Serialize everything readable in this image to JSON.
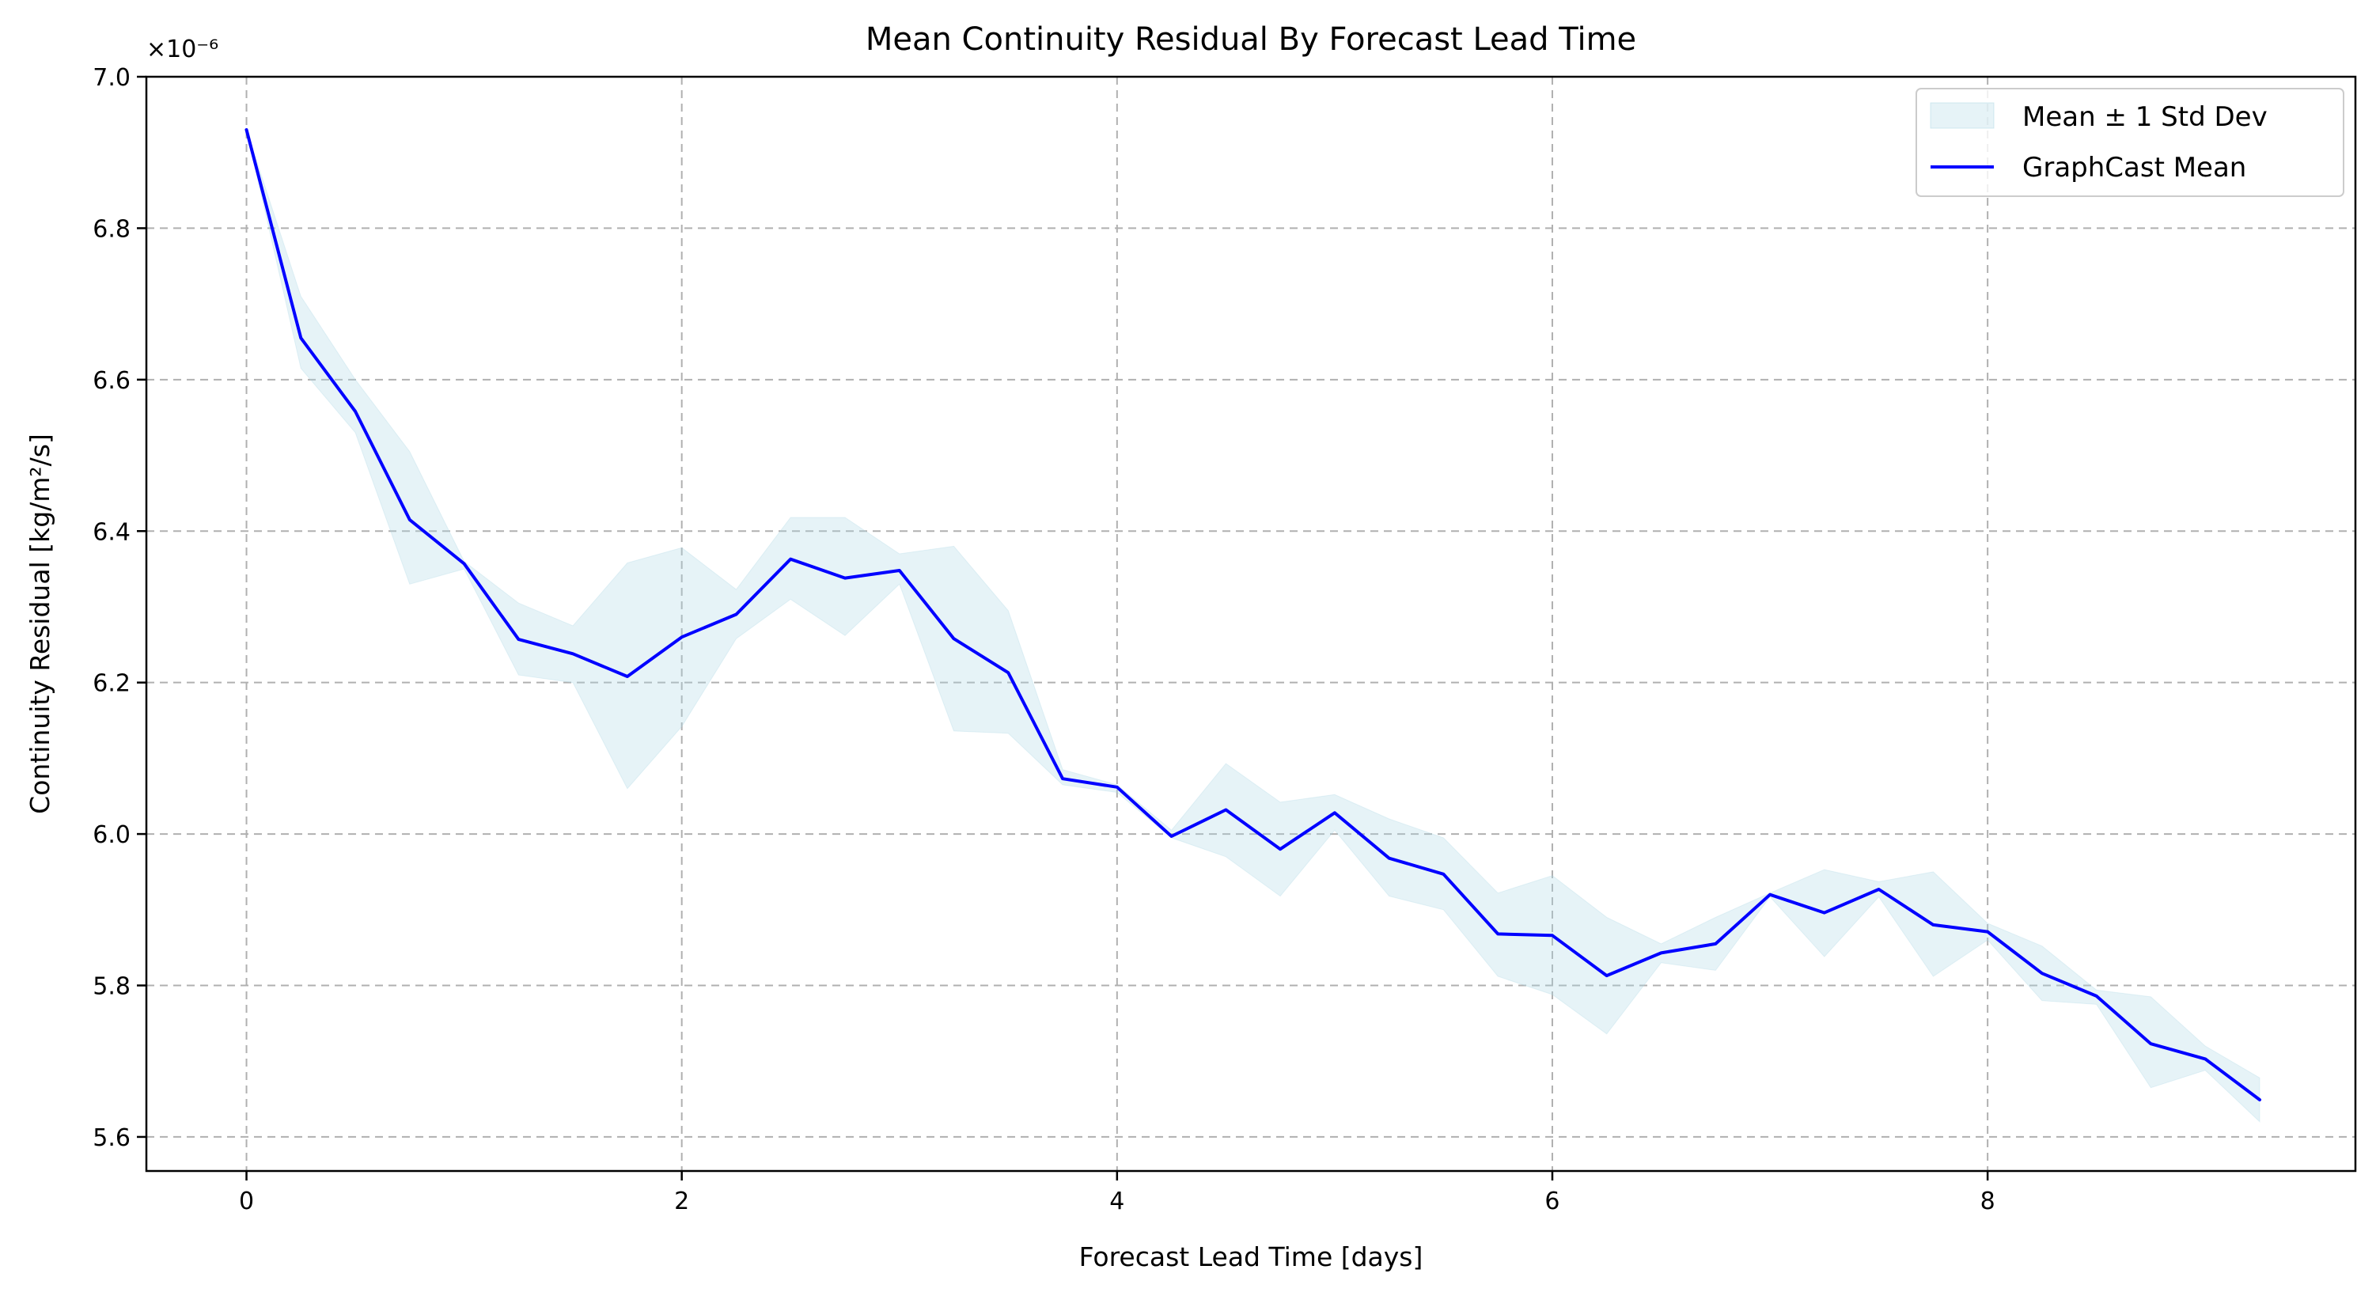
{
  "chart_data": {
    "type": "line",
    "title": "Mean Continuity Residual By Forecast Lead Time",
    "xlabel": "Forecast Lead Time [days]",
    "ylabel": "Continuity Residual [kg/m²/s]",
    "offset_text": "×10⁻⁶",
    "xlim": [
      -0.46,
      9.69
    ],
    "ylim": [
      5.555,
      7.0
    ],
    "xticks": [
      0,
      2,
      4,
      6,
      8
    ],
    "xtick_labels": [
      "0",
      "2",
      "4",
      "6",
      "8"
    ],
    "yticks": [
      5.6,
      5.8,
      6.0,
      6.2,
      6.4,
      6.6,
      6.8,
      7.0
    ],
    "ytick_labels": [
      "5.6",
      "5.8",
      "6.0",
      "6.2",
      "6.4",
      "6.6",
      "6.8",
      "7.0"
    ],
    "grid": true,
    "legend_position": "top-right",
    "x": [
      0,
      0.25,
      0.5,
      0.75,
      1.0,
      1.25,
      1.5,
      1.75,
      2.0,
      2.25,
      2.5,
      2.75,
      3.0,
      3.25,
      3.5,
      3.75,
      4.0,
      4.25,
      4.5,
      4.75,
      5.0,
      5.25,
      5.5,
      5.75,
      6.0,
      6.25,
      6.5,
      6.75,
      7.0,
      7.25,
      7.5,
      7.75,
      8.0,
      8.25,
      8.5,
      8.75,
      9.0,
      9.25
    ],
    "series": [
      {
        "name": "GraphCast Mean",
        "color": "#0000ff",
        "values": [
          6.93,
          6.655,
          6.558,
          6.415,
          6.357,
          6.257,
          6.238,
          6.208,
          6.26,
          6.29,
          6.363,
          6.338,
          6.348,
          6.258,
          6.213,
          6.073,
          6.062,
          5.997,
          6.032,
          5.98,
          6.028,
          5.968,
          5.947,
          5.868,
          5.866,
          5.813,
          5.843,
          5.855,
          5.92,
          5.896,
          5.927,
          5.88,
          5.871,
          5.816,
          5.786,
          5.723,
          5.703,
          5.649
        ]
      }
    ],
    "band": {
      "name": "Mean ± 1 Std Dev",
      "color": "#add8e6",
      "opacity": 0.3,
      "upper": [
        6.93,
        6.71,
        6.6,
        6.505,
        6.36,
        6.305,
        6.275,
        6.358,
        6.378,
        6.323,
        6.418,
        6.418,
        6.37,
        6.38,
        6.295,
        6.085,
        6.065,
        6.005,
        6.093,
        6.042,
        6.052,
        6.02,
        5.995,
        5.922,
        5.945,
        5.89,
        5.855,
        5.89,
        5.922,
        5.953,
        5.937,
        5.95,
        5.882,
        5.852,
        5.794,
        5.785,
        5.72,
        5.678
      ],
      "lower": [
        6.93,
        6.615,
        6.53,
        6.33,
        6.35,
        6.21,
        6.2,
        6.06,
        6.142,
        6.258,
        6.31,
        6.262,
        6.33,
        6.136,
        6.133,
        6.065,
        6.055,
        5.995,
        5.97,
        5.918,
        6.005,
        5.918,
        5.9,
        5.812,
        5.788,
        5.736,
        5.83,
        5.82,
        5.917,
        5.838,
        5.917,
        5.812,
        5.86,
        5.78,
        5.775,
        5.665,
        5.688,
        5.62
      ]
    }
  }
}
